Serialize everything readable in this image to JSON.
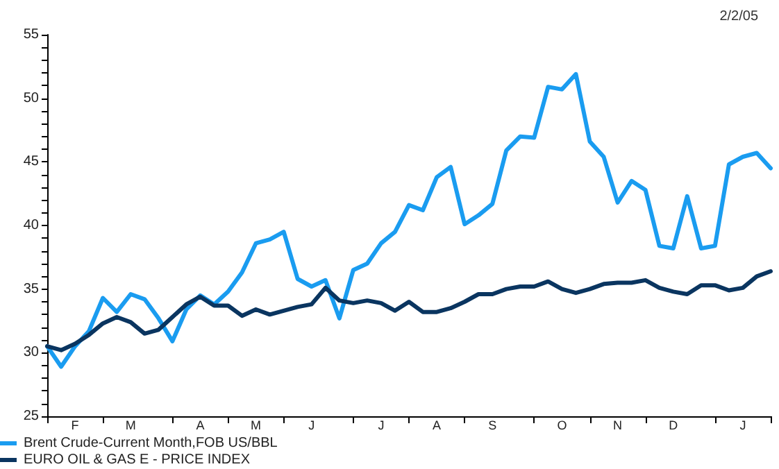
{
  "chart_data": {
    "type": "line",
    "annotations": [
      "2/2/05"
    ],
    "categories": [
      null,
      null,
      "F",
      null,
      null,
      null,
      "M",
      null,
      null,
      null,
      null,
      "A",
      null,
      null,
      null,
      "M",
      null,
      null,
      null,
      "J",
      null,
      null,
      null,
      null,
      "J",
      null,
      null,
      null,
      "A",
      null,
      null,
      null,
      "S",
      null,
      null,
      null,
      null,
      "O",
      null,
      null,
      null,
      "N",
      null,
      null,
      null,
      "D",
      null,
      null,
      null,
      null,
      "J",
      null,
      null
    ],
    "ylim": [
      25,
      55
    ],
    "yticks": [
      25,
      {
        "value": 26,
        "label": null
      },
      {
        "value": 27,
        "label": null
      },
      {
        "value": 28,
        "label": null
      },
      {
        "value": 29,
        "label": null
      },
      30,
      {
        "value": 31,
        "label": null
      },
      {
        "value": 32,
        "label": null
      },
      {
        "value": 33,
        "label": null
      },
      {
        "value": 34,
        "label": null
      },
      35,
      {
        "value": 36,
        "label": null
      },
      {
        "value": 37,
        "label": null
      },
      {
        "value": 38,
        "label": null
      },
      {
        "value": 39,
        "label": null
      },
      40,
      {
        "value": 41,
        "label": null
      },
      {
        "value": 42,
        "label": null
      },
      {
        "value": 43,
        "label": null
      },
      {
        "value": 44,
        "label": null
      },
      45,
      {
        "value": 46,
        "label": null
      },
      {
        "value": 47,
        "label": null
      },
      {
        "value": 48,
        "label": null
      },
      {
        "value": 49,
        "label": null
      },
      50,
      {
        "value": 51,
        "label": null
      },
      {
        "value": 52,
        "label": null
      },
      {
        "value": 53,
        "label": null
      },
      {
        "value": 54,
        "label": null
      },
      55
    ],
    "grid": false,
    "legend": "bottom left",
    "marker": "none",
    "line_style": "solid",
    "series": [
      {
        "name": "Brent Crude-Current Month,FOB US/BBL",
        "color": "#1a9cf0",
        "values": [
          30.5,
          28.9,
          30.5,
          31.7,
          34.3,
          33.2,
          34.6,
          34.2,
          32.7,
          30.9,
          33.4,
          34.5,
          33.8,
          34.8,
          36.3,
          38.6,
          38.9,
          39.5,
          35.8,
          35.2,
          35.7,
          32.7,
          36.5,
          37.0,
          38.6,
          39.5,
          41.6,
          41.2,
          43.8,
          44.6,
          40.1,
          40.8,
          41.7,
          45.9,
          47.0,
          46.9,
          50.9,
          50.7,
          51.9,
          46.6,
          45.4,
          41.8,
          43.5,
          42.8,
          38.4,
          38.2,
          42.3,
          38.2,
          38.4,
          44.8,
          45.4,
          45.7,
          44.5
        ]
      },
      {
        "name": "EURO OIL & GAS E - PRICE INDEX",
        "color": "#0a3560",
        "values": [
          30.5,
          30.2,
          30.7,
          31.4,
          32.3,
          32.8,
          32.4,
          31.5,
          31.8,
          32.8,
          33.8,
          34.4,
          33.7,
          33.7,
          32.9,
          33.4,
          33.0,
          33.3,
          33.6,
          33.8,
          35.1,
          34.1,
          33.9,
          34.1,
          33.9,
          33.3,
          34.0,
          33.2,
          33.2,
          33.5,
          34.0,
          34.6,
          34.6,
          35.0,
          35.2,
          35.2,
          35.6,
          35.0,
          34.7,
          35.0,
          35.4,
          35.5,
          35.5,
          35.7,
          35.1,
          34.8,
          34.6,
          35.3,
          35.3,
          34.9,
          35.1,
          36.0,
          36.4
        ]
      }
    ]
  }
}
